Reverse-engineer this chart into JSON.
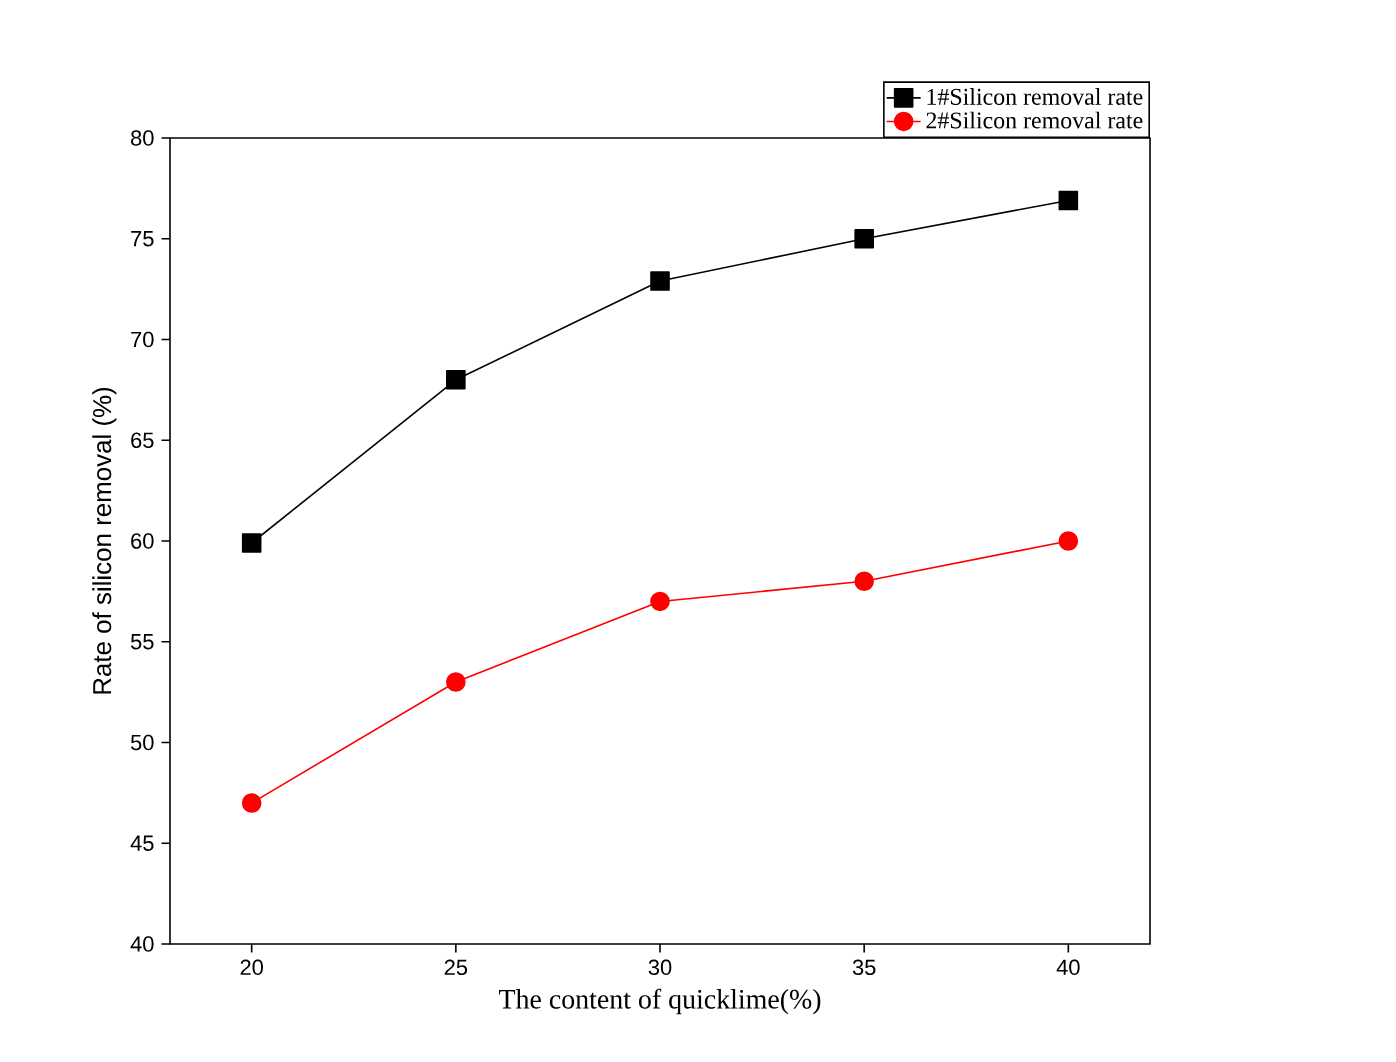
{
  "chart_data": {
    "type": "line",
    "xlabel": "The content of quicklime(%)",
    "ylabel": "Rate of silicon removal (%)",
    "x": [
      20,
      25,
      30,
      35,
      40
    ],
    "series": [
      {
        "name": "1#Silicon removal rate",
        "color": "#000000",
        "marker": "square",
        "values": [
          59.9,
          68,
          72.9,
          75,
          76.9
        ]
      },
      {
        "name": "2#Silicon removal rate",
        "color": "#ff0000",
        "marker": "circle",
        "values": [
          47,
          53,
          57,
          58,
          60
        ]
      }
    ],
    "xlim": [
      18,
      42
    ],
    "ylim": [
      40,
      80
    ],
    "xticks": [
      20,
      25,
      30,
      35,
      40
    ],
    "yticks": [
      40,
      45,
      50,
      55,
      60,
      65,
      70,
      75,
      80
    ],
    "legend": "top right",
    "grid": false,
    "line_style": "solid"
  }
}
